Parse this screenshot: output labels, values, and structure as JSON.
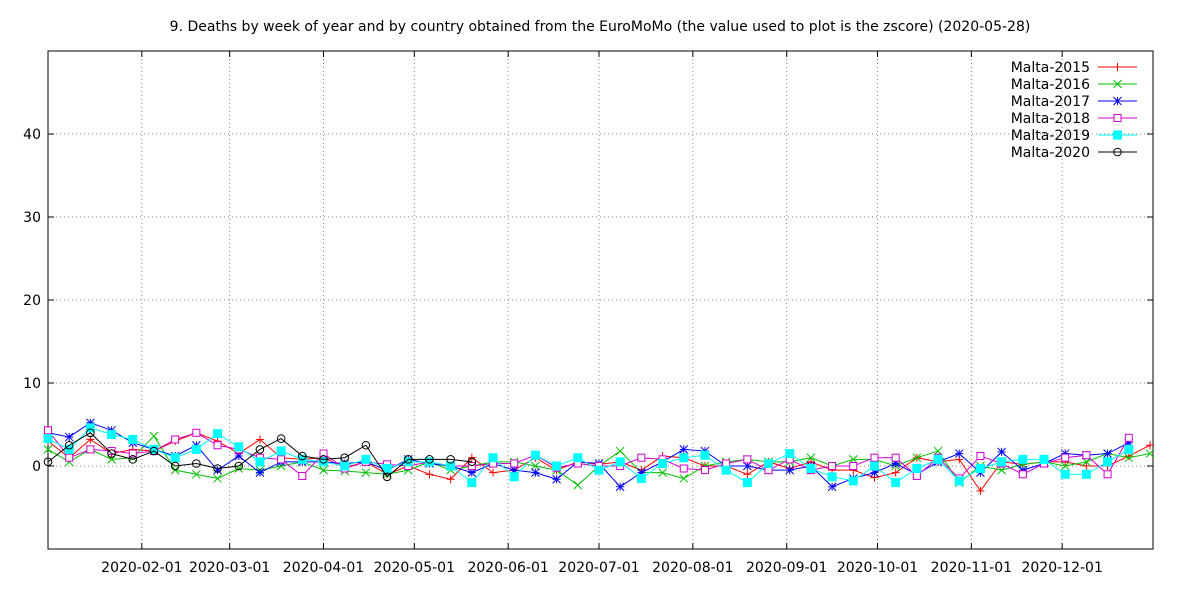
{
  "chart_data": {
    "type": "line",
    "title": "9. Deaths by week of year and by country obtained from the EuroMoMo (the value used to plot is the zscore) (2020-05-28)",
    "xlabel": "",
    "ylabel": "",
    "x_axis": {
      "type": "date",
      "range": [
        "2020-01-01",
        "2020-12-31"
      ],
      "ticks": [
        {
          "date": "2020-02-01",
          "label": "2020-02-01"
        },
        {
          "date": "2020-03-01",
          "label": "2020-03-01"
        },
        {
          "date": "2020-04-01",
          "label": "2020-04-01"
        },
        {
          "date": "2020-05-01",
          "label": "2020-05-01"
        },
        {
          "date": "2020-06-01",
          "label": "2020-06-01"
        },
        {
          "date": "2020-07-01",
          "label": "2020-07-01"
        },
        {
          "date": "2020-08-01",
          "label": "2020-08-01"
        },
        {
          "date": "2020-09-01",
          "label": "2020-09-01"
        },
        {
          "date": "2020-10-01",
          "label": "2020-10-01"
        },
        {
          "date": "2020-11-01",
          "label": "2020-11-01"
        },
        {
          "date": "2020-12-01",
          "label": "2020-12-01"
        }
      ]
    },
    "y_axis": {
      "range": [
        -10,
        50
      ],
      "ticks": [
        0,
        10,
        20,
        30,
        40
      ]
    },
    "grid": true,
    "legend_position": "top-right",
    "x": [
      "2020-01-01",
      "2020-01-08",
      "2020-01-15",
      "2020-01-22",
      "2020-01-29",
      "2020-02-05",
      "2020-02-12",
      "2020-02-19",
      "2020-02-26",
      "2020-03-04",
      "2020-03-11",
      "2020-03-18",
      "2020-03-25",
      "2020-04-01",
      "2020-04-08",
      "2020-04-15",
      "2020-04-22",
      "2020-04-29",
      "2020-05-06",
      "2020-05-13",
      "2020-05-20",
      "2020-05-27",
      "2020-06-03",
      "2020-06-10",
      "2020-06-17",
      "2020-06-24",
      "2020-07-01",
      "2020-07-08",
      "2020-07-15",
      "2020-07-22",
      "2020-07-29",
      "2020-08-05",
      "2020-08-12",
      "2020-08-19",
      "2020-08-26",
      "2020-09-02",
      "2020-09-09",
      "2020-09-16",
      "2020-09-23",
      "2020-09-30",
      "2020-10-07",
      "2020-10-14",
      "2020-10-21",
      "2020-10-28",
      "2020-11-04",
      "2020-11-11",
      "2020-11-18",
      "2020-11-25",
      "2020-12-02",
      "2020-12-09",
      "2020-12-16",
      "2020-12-23",
      "2020-12-30"
    ],
    "series": [
      {
        "name": "Malta-2015",
        "color": "#ff0000",
        "marker": "plus",
        "values": [
          3.0,
          1.0,
          3.2,
          1.5,
          2.0,
          1.8,
          3.0,
          4.0,
          3.0,
          1.5,
          3.2,
          1.0,
          0.8,
          1.0,
          -0.2,
          0.5,
          -1.0,
          0.0,
          -1.0,
          -1.6,
          1.0,
          -0.8,
          -0.5,
          1.0,
          -0.5,
          0.5,
          0.2,
          0.5,
          -0.5,
          1.2,
          1.0,
          0.0,
          0.0,
          -1.0,
          0.5,
          -0.3,
          0.5,
          -0.5,
          -0.5,
          -1.4,
          -0.8,
          1.0,
          0.5,
          0.8,
          -3.0,
          0.5,
          0.2,
          0.5,
          0.5,
          0.0,
          0.0,
          1.2,
          2.5
        ]
      },
      {
        "name": "Malta-2016",
        "color": "#00c000",
        "marker": "cross",
        "values": [
          2.0,
          0.5,
          2.0,
          0.8,
          1.0,
          3.6,
          -0.5,
          -1.0,
          -1.5,
          -0.3,
          -0.5,
          0.0,
          0.5,
          -0.5,
          -0.6,
          -0.8,
          -1.0,
          -0.5,
          0.5,
          -0.5,
          0.0,
          0.5,
          0.5,
          0.0,
          -0.5,
          -2.3,
          0.0,
          1.8,
          -0.8,
          -0.8,
          -1.5,
          0.0,
          0.5,
          0.8,
          0.5,
          0.5,
          1.0,
          0.0,
          0.8,
          0.8,
          0.0,
          1.0,
          1.8,
          -2.0,
          0.0,
          -0.5,
          0.2,
          0.5,
          0.0,
          0.5,
          1.5,
          1.0,
          1.5
        ]
      },
      {
        "name": "Malta-2017",
        "color": "#0000ff",
        "marker": "star",
        "values": [
          4.0,
          3.5,
          5.2,
          4.3,
          2.8,
          2.0,
          1.2,
          2.5,
          -0.5,
          1.2,
          -0.8,
          0.5,
          0.5,
          0.5,
          0.3,
          0.5,
          -0.5,
          0.8,
          0.3,
          0.0,
          -0.8,
          0.3,
          -0.5,
          -0.8,
          -1.6,
          0.5,
          0.3,
          -2.5,
          -0.8,
          0.5,
          2.0,
          1.8,
          0.0,
          0.0,
          -0.5,
          -0.5,
          0.0,
          -2.5,
          -1.5,
          -0.8,
          0.3,
          -1.0,
          0.5,
          1.5,
          -0.8,
          1.7,
          -0.5,
          0.3,
          1.5,
          1.3,
          1.5,
          2.8,
          null
        ]
      },
      {
        "name": "Malta-2018",
        "color": "#d000d0",
        "marker": "square",
        "values": [
          4.3,
          1.0,
          2.0,
          1.8,
          1.5,
          1.8,
          3.2,
          4.0,
          2.5,
          2.0,
          1.0,
          0.8,
          -1.2,
          1.5,
          -0.3,
          0.5,
          0.2,
          0.0,
          0.5,
          0.0,
          0.0,
          0.3,
          0.3,
          1.3,
          -0.2,
          0.3,
          0.0,
          0.0,
          1.0,
          0.8,
          -0.3,
          -0.5,
          0.3,
          0.8,
          -0.5,
          0.8,
          -0.5,
          0.0,
          0.0,
          1.0,
          1.0,
          -1.2,
          1.0,
          -1.5,
          1.2,
          0.3,
          -1.0,
          0.3,
          1.0,
          1.3,
          -1.0,
          3.4,
          null
        ]
      },
      {
        "name": "Malta-2019",
        "color": "#00ffff",
        "marker": "filled-square",
        "values": [
          3.3,
          2.0,
          4.6,
          3.8,
          3.2,
          2.0,
          1.0,
          2.0,
          3.9,
          2.3,
          0.5,
          1.8,
          0.8,
          0.5,
          0.0,
          0.8,
          -0.3,
          0.5,
          0.5,
          0.0,
          -2.0,
          1.0,
          -1.3,
          1.3,
          0.0,
          1.0,
          -0.5,
          0.5,
          -1.5,
          0.3,
          1.0,
          1.3,
          -0.5,
          -2.0,
          0.3,
          1.5,
          -0.3,
          -1.3,
          -1.8,
          0.0,
          -2.0,
          -0.3,
          0.8,
          -1.8,
          -0.3,
          0.5,
          0.8,
          0.8,
          -1.0,
          -1.0,
          0.5,
          2.0,
          null
        ]
      },
      {
        "name": "Malta-2020",
        "color": "#000000",
        "marker": "circle",
        "values": [
          0.5,
          2.5,
          4.0,
          1.5,
          0.8,
          1.8,
          0.0,
          0.3,
          -0.3,
          0.0,
          2.0,
          3.3,
          1.2,
          0.8,
          1.0,
          2.5,
          -1.3,
          0.8,
          0.8,
          0.8,
          0.5,
          null,
          null,
          null,
          null,
          null,
          null,
          null,
          null,
          null,
          null,
          null,
          null,
          null,
          null,
          null,
          null,
          null,
          null,
          null,
          null,
          null,
          null,
          null,
          null,
          null,
          null,
          null,
          null,
          null,
          null,
          null,
          null
        ]
      }
    ]
  }
}
